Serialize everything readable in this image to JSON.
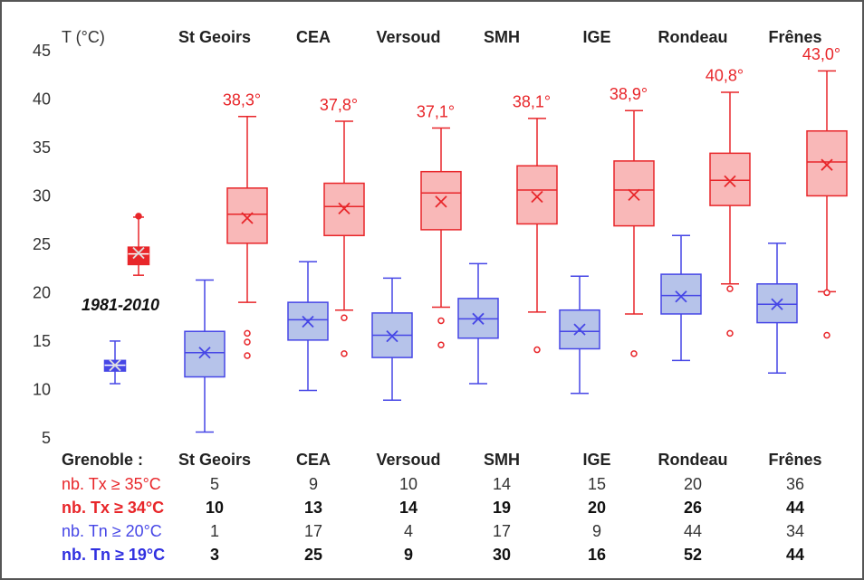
{
  "chart_data": {
    "type": "box",
    "y_label": "T (°C)",
    "categories": [
      "1981-2010",
      "St Geoirs",
      "CEA",
      "Versoud",
      "SMH",
      "IGE",
      "Rondeau",
      "Frênes"
    ],
    "ylim": [
      5,
      45
    ],
    "yticks": [
      5,
      10,
      15,
      20,
      25,
      30,
      35,
      40,
      45
    ],
    "series": [
      {
        "color": "#4646e6",
        "fill": "#b6c3ea",
        "min": [
          10.7,
          5.7,
          10.0,
          9.0,
          10.7,
          9.7,
          13.1,
          11.8
        ],
        "q1": [
          12.0,
          11.4,
          15.2,
          13.4,
          15.4,
          14.3,
          17.9,
          17.0
        ],
        "median": [
          12.6,
          13.9,
          17.3,
          15.7,
          17.4,
          16.1,
          19.8,
          18.9
        ],
        "q3": [
          13.1,
          16.1,
          19.1,
          18.0,
          19.5,
          18.3,
          22.0,
          21.0
        ],
        "max": [
          15.1,
          21.4,
          23.3,
          21.6,
          23.1,
          21.8,
          26.0,
          25.2
        ],
        "mean": [
          12.6,
          13.9,
          17.1,
          15.6,
          17.4,
          16.3,
          19.7,
          18.9
        ],
        "outliers": [
          [],
          [],
          [],
          [],
          [],
          [],
          [],
          []
        ]
      },
      {
        "color": "#e8262a",
        "fill": "#f9b8b8",
        "min": [
          21.9,
          19.1,
          18.3,
          18.6,
          18.1,
          17.9,
          21.0,
          20.2
        ],
        "q1": [
          23.0,
          25.2,
          26.0,
          26.6,
          27.2,
          27.0,
          29.1,
          30.1
        ],
        "median": [
          24.1,
          28.2,
          29.0,
          30.4,
          30.7,
          30.7,
          31.7,
          33.6
        ],
        "q3": [
          24.8,
          30.9,
          31.4,
          32.6,
          33.2,
          33.7,
          34.5,
          36.8
        ],
        "max": [
          27.9,
          38.3,
          37.8,
          37.1,
          38.1,
          38.9,
          40.8,
          43.0
        ],
        "value_labels": [
          null,
          "38,3°",
          "37,8°",
          "37,1°",
          "38,1°",
          "38,9°",
          "40,8°",
          "43,0°"
        ],
        "mean": [
          24.2,
          27.8,
          28.8,
          29.5,
          30.0,
          30.2,
          31.6,
          33.3
        ],
        "outliers": [
          [
            28.0
          ],
          [
            15.9,
            15.0,
            13.6
          ],
          [
            17.5,
            13.8
          ],
          [
            17.2,
            14.7
          ],
          [
            14.2
          ],
          [
            13.8
          ],
          [
            20.5,
            15.9
          ],
          [
            20.1,
            15.7
          ]
        ]
      }
    ]
  },
  "table": {
    "header": [
      "Grenoble :",
      "St Geoirs",
      "CEA",
      "Versoud",
      "SMH",
      "IGE",
      "Rondeau",
      "Frênes"
    ],
    "rows": [
      {
        "label": "nb. Tx ≥ 35°C",
        "values": [
          5,
          9,
          10,
          14,
          15,
          20,
          36
        ]
      },
      {
        "label": "nb. Tx ≥ 34°C",
        "values": [
          10,
          13,
          14,
          19,
          20,
          26,
          44
        ]
      },
      {
        "label": "nb. Tn ≥ 20°C",
        "values": [
          1,
          17,
          4,
          17,
          9,
          44,
          34
        ]
      },
      {
        "label": "nb. Tn ≥ 19°C",
        "values": [
          3,
          25,
          9,
          30,
          16,
          52,
          44
        ]
      }
    ]
  }
}
